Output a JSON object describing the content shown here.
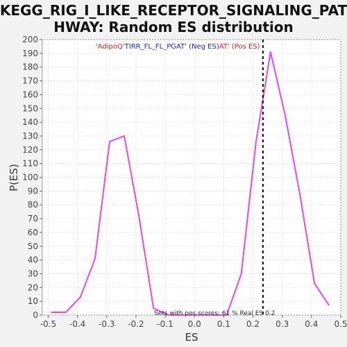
{
  "chart_data": {
    "type": "line",
    "title_line1": "KEGG_RIG_I_LIKE_RECEPTOR_SIGNALING_PAT",
    "title_line2": "HWAY: Random ES distribution",
    "xlabel": "ES",
    "ylabel": "P(ES)",
    "xlim": [
      -0.52,
      0.5
    ],
    "ylim": [
      0,
      200
    ],
    "x_ticks": [
      -0.5,
      -0.4,
      -0.3,
      -0.2,
      -0.1,
      0.0,
      0.1,
      0.2,
      0.3,
      0.4,
      0.5
    ],
    "x_tick_labels": [
      "-0.5",
      "-0.4",
      "-0.3",
      "-0.2",
      "-0.1",
      "0.0",
      "0.1",
      "0.2",
      "0.3",
      "0.4",
      "0.5"
    ],
    "y_ticks": [
      0,
      10,
      20,
      30,
      40,
      50,
      60,
      70,
      80,
      90,
      100,
      110,
      120,
      130,
      140,
      150,
      160,
      170,
      180,
      190,
      200
    ],
    "grid": true,
    "series": [
      {
        "color": "#ee44ee",
        "x": [
          -0.49,
          -0.44,
          -0.39,
          -0.34,
          -0.29,
          -0.24,
          -0.19,
          -0.14,
          -0.09,
          -0.04,
          0.01,
          0.06,
          0.11,
          0.16,
          0.21,
          0.26,
          0.31,
          0.36,
          0.41,
          0.46
        ],
        "y": [
          2,
          2,
          13,
          41,
          126,
          130,
          72,
          5,
          0,
          0,
          0,
          0,
          0,
          30,
          125,
          191,
          145,
          88,
          23,
          7
        ]
      }
    ],
    "real_es": 0.234,
    "real_es_line_color": "#000000",
    "legend": [
      {
        "text": "'AdipoQ'",
        "color": "#dd2222"
      },
      {
        "text": "TIRR_FL_FL_PGAT' (Neg ES)",
        "color": "#2222cc"
      },
      {
        "text": "AT' (Pos ES)",
        "color": "#dd2222"
      }
    ],
    "footnote": "Sets with pos scores: 61 %    Real ES 0.2"
  }
}
